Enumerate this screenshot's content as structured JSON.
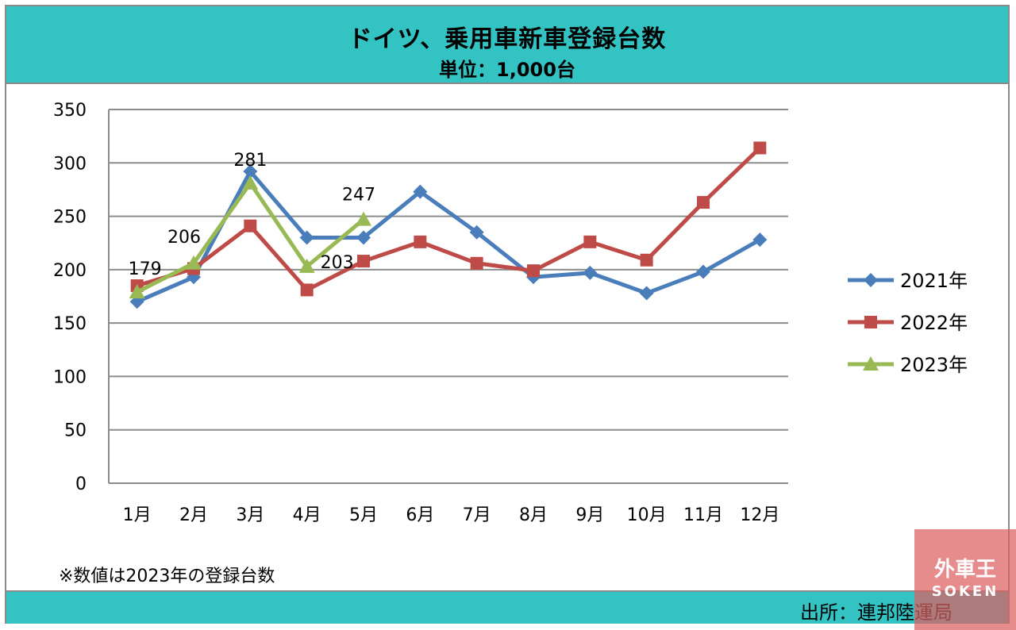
{
  "header": {
    "title": "ドイツ、乗用車新車登録台数",
    "subtitle": "単位：1,000台"
  },
  "note": "※数値は2023年の登録台数",
  "source": "出所：連邦陸運局",
  "watermark": {
    "main": "外車王",
    "sub": "SOKEN"
  },
  "chart_data": {
    "type": "line",
    "title": "ドイツ、乗用車新車登録台数",
    "subtitle": "単位：1,000台",
    "categories": [
      "1月",
      "2月",
      "3月",
      "4月",
      "5月",
      "6月",
      "7月",
      "8月",
      "9月",
      "10月",
      "11月",
      "12月"
    ],
    "ylim": [
      0,
      350
    ],
    "yticks": [
      0,
      50,
      100,
      150,
      200,
      250,
      300,
      350
    ],
    "grid": true,
    "legend_position": "right",
    "series": [
      {
        "name": "2021年",
        "color": "#4a7ebb",
        "marker": "diamond",
        "values": [
          170,
          193,
          292,
          230,
          230,
          273,
          235,
          193,
          197,
          178,
          198,
          228
        ]
      },
      {
        "name": "2022年",
        "color": "#be4b48",
        "marker": "square",
        "values": [
          185,
          201,
          241,
          181,
          208,
          226,
          206,
          199,
          226,
          209,
          263,
          314
        ]
      },
      {
        "name": "2023年",
        "color": "#98b954",
        "marker": "triangle",
        "values": [
          179,
          206,
          281,
          203,
          247,
          null,
          null,
          null,
          null,
          null,
          null,
          null
        ]
      }
    ],
    "data_labels": [
      {
        "series": "2023年",
        "index": 0,
        "text": "179"
      },
      {
        "series": "2023年",
        "index": 1,
        "text": "206"
      },
      {
        "series": "2023年",
        "index": 2,
        "text": "281"
      },
      {
        "series": "2023年",
        "index": 3,
        "text": "203"
      },
      {
        "series": "2023年",
        "index": 4,
        "text": "247"
      }
    ]
  }
}
